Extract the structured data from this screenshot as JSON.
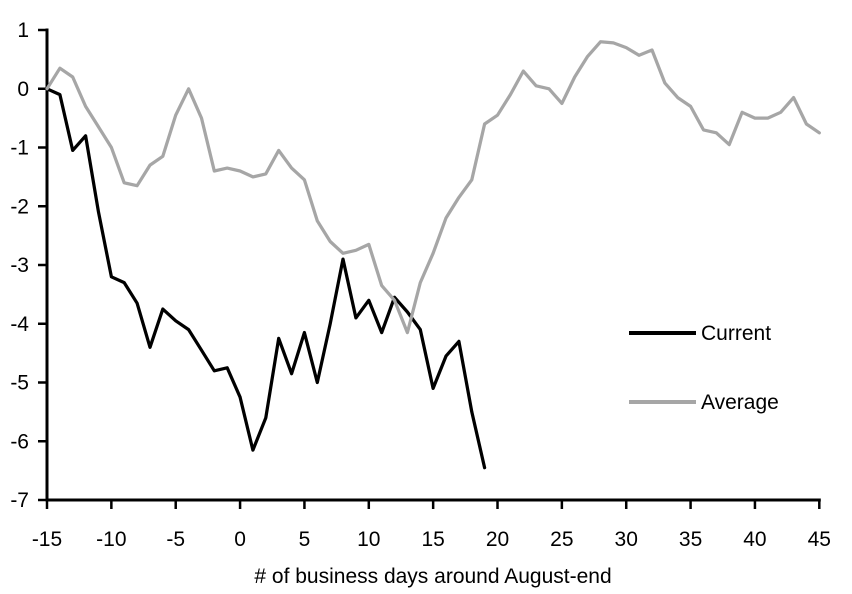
{
  "chart_data": {
    "type": "line",
    "title": "",
    "xlabel": "# of business days around August-end",
    "ylabel": "",
    "xlim": [
      -15,
      45
    ],
    "ylim": [
      -7,
      1
    ],
    "x_ticks": [
      -15,
      -10,
      -5,
      0,
      5,
      10,
      15,
      20,
      25,
      30,
      35,
      40,
      45
    ],
    "y_ticks": [
      1,
      0,
      -1,
      -2,
      -3,
      -4,
      -5,
      -6,
      -7
    ],
    "grid": false,
    "legend_position": "right-middle",
    "series": [
      {
        "name": "Current",
        "color": "#000000",
        "x_start": -15,
        "values": [
          0.0,
          -0.1,
          -1.05,
          -0.8,
          -2.1,
          -3.2,
          -3.3,
          -3.65,
          -4.4,
          -3.75,
          -3.95,
          -4.1,
          -4.45,
          -4.8,
          -4.75,
          -5.25,
          -6.15,
          -5.6,
          -4.25,
          -4.85,
          -4.15,
          -5.0,
          -4.0,
          -2.9,
          -3.9,
          -3.6,
          -4.15,
          -3.55,
          -3.8,
          -4.1,
          -5.1,
          -4.55,
          -4.3,
          -5.5,
          -6.45
        ]
      },
      {
        "name": "Average",
        "color": "#a6a6a6",
        "x_start": -15,
        "values": [
          0.0,
          0.35,
          0.2,
          -0.3,
          -0.65,
          -1.0,
          -1.6,
          -1.65,
          -1.3,
          -1.15,
          -0.45,
          0.0,
          -0.5,
          -1.4,
          -1.35,
          -1.4,
          -1.5,
          -1.45,
          -1.05,
          -1.35,
          -1.55,
          -2.25,
          -2.6,
          -2.8,
          -2.75,
          -2.65,
          -3.35,
          -3.6,
          -4.15,
          -3.3,
          -2.8,
          -2.2,
          -1.85,
          -1.55,
          -0.6,
          -0.45,
          -0.1,
          0.3,
          0.05,
          0.0,
          -0.25,
          0.2,
          0.55,
          0.8,
          0.78,
          0.7,
          0.57,
          0.66,
          0.1,
          -0.15,
          -0.3,
          -0.7,
          -0.75,
          -0.95,
          -0.4,
          -0.5,
          -0.5,
          -0.4,
          -0.15,
          -0.6,
          -0.75
        ]
      }
    ]
  },
  "legend": {
    "items": [
      {
        "label": "Current",
        "color": "#000000"
      },
      {
        "label": "Average",
        "color": "#a6a6a6"
      }
    ]
  },
  "axis": {
    "x_title": "# of business days around August-end"
  }
}
